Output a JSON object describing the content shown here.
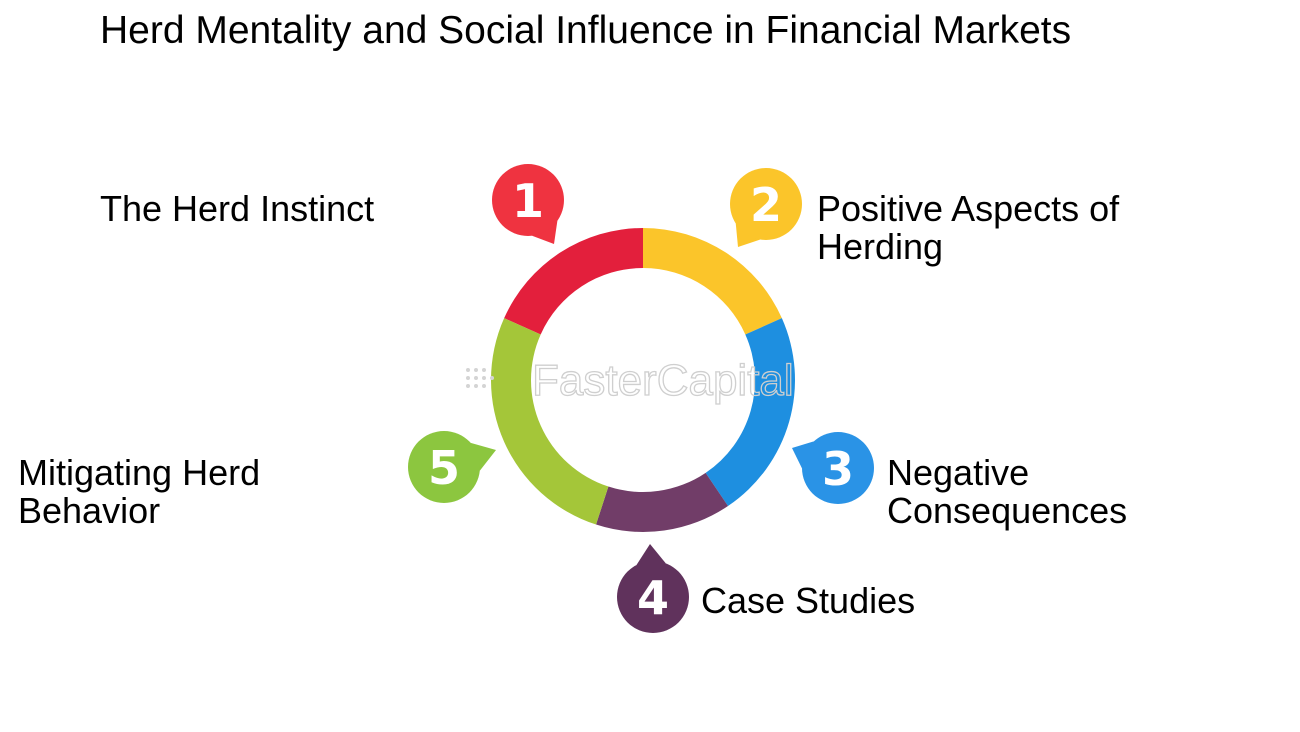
{
  "title": "Herd Mentality and Social Influence in Financial Markets",
  "watermark": "FasterCapital",
  "steps": [
    {
      "number": "1",
      "label": "The Herd Instinct",
      "color": "#e31f3c",
      "badge_color": "#ef3340"
    },
    {
      "number": "2",
      "label_lines": [
        "Positive Aspects of",
        "Herding"
      ],
      "color": "#fbc52a",
      "badge_color": "#fbc52a"
    },
    {
      "number": "3",
      "label_lines": [
        "Negative",
        "Consequences"
      ],
      "color": "#1e8fe0",
      "badge_color": "#2a93e6"
    },
    {
      "number": "4",
      "label": "Case Studies",
      "color": "#713d68",
      "badge_color": "#60325c"
    },
    {
      "number": "5",
      "label_lines": [
        "Mitigating Herd",
        "Behavior"
      ],
      "color": "#a4c639",
      "badge_color": "#8cc63f"
    }
  ]
}
